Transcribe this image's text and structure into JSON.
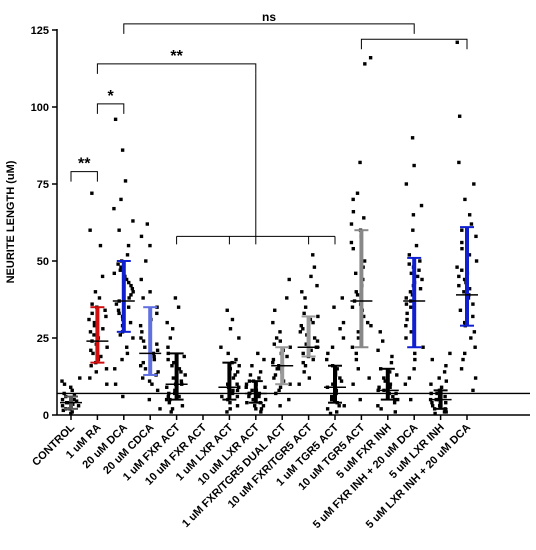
{
  "chart_data": {
    "type": "scatter",
    "title": "",
    "xlabel": "",
    "ylabel": "NEURITE LENGTH (uM)",
    "ylim": [
      0,
      125
    ],
    "yticks": [
      0,
      25,
      50,
      75,
      100,
      125
    ],
    "reference_line_y": 7,
    "categories": [
      "CONTROL",
      "1 uM RA",
      "20 uM DCA",
      "20 uM CDCA",
      "1 uM FXR ACT",
      "10 uM FXR ACT",
      "1 uM LXR ACT",
      "10 uM LXR ACT",
      "1 uM FXR/TGR5 DUAL ACT",
      "10 uM FXR/TGR5 ACT",
      "1 uM TGR5 ACT",
      "10 uM TGR5 ACT",
      "5 uM FXR INH",
      "5 uM FXR INH + 20 uM DCA",
      "5 uM LXR INH",
      "5 uM LXR INH + 20 uM DCA"
    ],
    "groups": [
      {
        "median": 4,
        "q1": 2,
        "q3": 6,
        "color": "#555555",
        "points": [
          0.5,
          1,
          1.5,
          2,
          2,
          2.5,
          3,
          3,
          3.5,
          4,
          4,
          4.5,
          5,
          5,
          5.5,
          6,
          6.5,
          7,
          8,
          9,
          10,
          11,
          12
        ]
      },
      {
        "median": 24,
        "q1": 17,
        "q3": 35,
        "color": "#d01010",
        "points": [
          10,
          12,
          14,
          15,
          16,
          17,
          18,
          19,
          20,
          21,
          22,
          23,
          24,
          25,
          26,
          27,
          28,
          29,
          30,
          31,
          32,
          33,
          34,
          35,
          36,
          38,
          40,
          45,
          55,
          60,
          72
        ]
      },
      {
        "median": 37,
        "q1": 27,
        "q3": 50,
        "color": "#1020d0",
        "points": [
          6,
          10,
          15,
          18,
          20,
          22,
          25,
          26,
          27,
          28,
          29,
          30,
          31,
          32,
          33,
          34,
          35,
          36,
          37,
          38,
          39,
          40,
          41,
          42,
          43,
          44,
          45,
          46,
          47,
          48,
          49,
          50,
          52,
          55,
          60,
          63,
          67,
          70,
          76,
          86,
          96
        ]
      },
      {
        "median": 20,
        "q1": 13,
        "q3": 35,
        "color": "#6070e0",
        "points": [
          2,
          5,
          8,
          10,
          11,
          12,
          13,
          14,
          15,
          16,
          17,
          18,
          19,
          20,
          21,
          22,
          23,
          24,
          25,
          27,
          29,
          31,
          33,
          35,
          38,
          40,
          44,
          50,
          55,
          58,
          62
        ]
      },
      {
        "median": 10,
        "q1": 5,
        "q3": 20,
        "color": "#000000",
        "points": [
          1,
          2,
          3,
          4,
          5,
          5,
          6,
          6,
          7,
          7,
          8,
          8,
          9,
          10,
          10,
          11,
          12,
          13,
          14,
          15,
          16,
          17,
          18,
          19,
          20,
          22,
          25,
          28,
          30,
          35,
          38
        ]
      },
      {
        "median": null,
        "q1": null,
        "q3": null,
        "color": "#000000",
        "points": []
      },
      {
        "median": 9,
        "q1": 5,
        "q3": 17,
        "color": "#000000",
        "points": [
          1,
          2,
          3,
          4,
          5,
          6,
          6,
          7,
          7,
          8,
          8,
          9,
          9,
          10,
          10,
          11,
          12,
          13,
          14,
          15,
          16,
          17,
          18,
          20,
          22,
          25,
          28,
          31,
          34
        ]
      },
      {
        "median": 7,
        "q1": 4,
        "q3": 11,
        "color": "#000000",
        "points": [
          1,
          2,
          2,
          3,
          3,
          4,
          4,
          5,
          5,
          5,
          6,
          6,
          7,
          7,
          7,
          8,
          8,
          9,
          9,
          10,
          10,
          11,
          11,
          12,
          13,
          14,
          16,
          18,
          20
        ]
      },
      {
        "median": 16,
        "q1": 10,
        "q3": 22,
        "color": "#9a9a9a",
        "points": [
          3,
          5,
          7,
          8,
          9,
          10,
          11,
          12,
          13,
          14,
          15,
          15,
          16,
          16,
          17,
          18,
          19,
          20,
          21,
          22,
          23,
          24,
          25,
          27,
          30,
          34,
          38,
          44
        ]
      },
      {
        "median": 22,
        "q1": 19,
        "q3": 32,
        "color": "#9a9a9a",
        "points": [
          10,
          12,
          14,
          16,
          17,
          18,
          19,
          20,
          21,
          22,
          22,
          23,
          24,
          25,
          26,
          27,
          28,
          29,
          30,
          31,
          32,
          33,
          35,
          38,
          40,
          42,
          45,
          48,
          52
        ]
      },
      {
        "median": 9,
        "q1": 4,
        "q3": 16,
        "color": "#000000",
        "points": [
          0.5,
          1,
          2,
          3,
          3,
          4,
          5,
          6,
          7,
          8,
          9,
          10,
          11,
          12,
          13,
          14,
          15,
          16,
          18,
          20,
          22,
          25,
          28,
          30,
          35,
          38
        ]
      },
      {
        "median": 37,
        "q1": 22,
        "q3": 60,
        "color": "#888888",
        "points": [
          5,
          10,
          12,
          15,
          18,
          20,
          22,
          25,
          27,
          29,
          30,
          32,
          34,
          35,
          36,
          37,
          38,
          39,
          40,
          42,
          44,
          46,
          48,
          50,
          52,
          54,
          56,
          58,
          60,
          62,
          64,
          66,
          70,
          72,
          82,
          114,
          116
        ]
      },
      {
        "median": 8,
        "q1": 5,
        "q3": 15,
        "color": "#000000",
        "points": [
          1,
          2,
          3,
          4,
          5,
          5,
          6,
          7,
          7,
          8,
          8,
          9,
          9,
          10,
          11,
          12,
          13,
          14,
          15,
          17,
          19,
          21,
          24,
          27
        ]
      },
      {
        "median": 37,
        "q1": 22,
        "q3": 51,
        "color": "#1020d0",
        "points": [
          5,
          10,
          12,
          15,
          18,
          20,
          22,
          25,
          27,
          29,
          31,
          33,
          35,
          36,
          37,
          38,
          39,
          40,
          41,
          42,
          43,
          44,
          45,
          46,
          47,
          48,
          49,
          50,
          52,
          55,
          60,
          65,
          68,
          75,
          81,
          90
        ]
      },
      {
        "median": 5,
        "q1": 2,
        "q3": 8,
        "color": "#000000",
        "points": [
          0.5,
          1,
          1,
          2,
          2,
          3,
          3,
          4,
          4,
          5,
          5,
          5,
          6,
          6,
          7,
          7,
          8,
          8,
          9,
          10,
          11,
          12,
          14,
          16,
          18,
          20
        ]
      },
      {
        "median": 39,
        "q1": 29,
        "q3": 61,
        "color": "#1020d0",
        "points": [
          8,
          12,
          15,
          18,
          20,
          22,
          25,
          27,
          29,
          30,
          32,
          34,
          36,
          38,
          39,
          40,
          41,
          42,
          43,
          44,
          45,
          46,
          47,
          48,
          50,
          52,
          54,
          56,
          58,
          60,
          62,
          65,
          70,
          75,
          82,
          97,
          121
        ]
      }
    ],
    "significance": [
      {
        "label": "**",
        "from": 0,
        "to": 1,
        "y": 79,
        "size": 16
      },
      {
        "label": "*",
        "from": 1,
        "to": 2,
        "y": 101,
        "size": 16
      },
      {
        "label": "**",
        "from": 1,
        "to": 7,
        "y": 114,
        "size": 16
      },
      {
        "label": "ns",
        "from": 2,
        "to": 13,
        "y": 127,
        "size": 12
      },
      {
        "label": "",
        "from": 11,
        "to": 15,
        "y": 122,
        "size": 12
      }
    ]
  }
}
